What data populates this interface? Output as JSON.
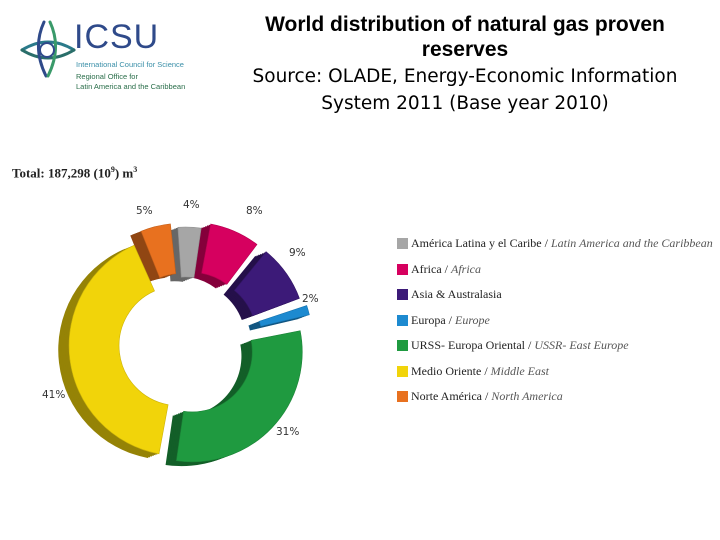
{
  "logo": {
    "wordmark": "ICSU",
    "subtitle": "International Council for Science",
    "office_line1": "Regional Office for",
    "office_line2": "Latin America and the Caribbean"
  },
  "header": {
    "title_line1": "World distribution of natural gas proven",
    "title_line2": "reserves",
    "source_line1": "Source: OLADE, Energy-Economic Information",
    "source_line2": "System 2011 (Base year 2010)"
  },
  "total": {
    "label": "Total: 187,298 (10",
    "exponent": "9",
    "unit": ") m",
    "unit_exponent": "3"
  },
  "legend": [
    {
      "es": "América Latina y el Caribe",
      "sep": " / ",
      "en": "Latin America and the Caribbean",
      "color": "#a6a6a6"
    },
    {
      "es": "Africa",
      "sep": " / ",
      "en": "Africa",
      "color": "#d6005f"
    },
    {
      "es": "Asia & Australasia",
      "sep": "",
      "en": "",
      "color": "#3c1a78"
    },
    {
      "es": "Europa",
      "sep": " / ",
      "en": "Europe",
      "color": "#1d8ad0"
    },
    {
      "es": "URSS- Europa Oriental",
      "sep": " / ",
      "en": "USSR- East Europe",
      "color": "#1f9a40"
    },
    {
      "es": "Medio Oriente",
      "sep": " / ",
      "en": "Middle East",
      "color": "#f1d40a"
    },
    {
      "es": "Norte América",
      "sep": " / ",
      "en": "North America",
      "color": "#e8711f"
    }
  ],
  "labels": {
    "north_america": "5%",
    "latin_america": "4%",
    "africa": "8%",
    "asia": "9%",
    "europe": "2%",
    "ussr": "31%",
    "middle_east": "41%"
  },
  "chart_data": {
    "type": "pie",
    "subtype": "3d-exploded-donut",
    "title": "World distribution of natural gas proven reserves",
    "subtitle": "Total: 187,298 (10^9) m3",
    "source": "OLADE, Energy-Economic Information System 2011 (Base year 2010)",
    "categories": [
      "América Latina y el Caribe / Latin America and the Caribbean",
      "Africa / Africa",
      "Asia & Australasia",
      "Europa / Europe",
      "URSS- Europa Oriental / USSR- East Europe",
      "Medio Oriente / Middle East",
      "Norte América / North America"
    ],
    "values": [
      4,
      8,
      9,
      2,
      31,
      41,
      5
    ],
    "unit": "%",
    "colors": [
      "#a6a6a6",
      "#d6005f",
      "#3c1a78",
      "#1d8ad0",
      "#1f9a40",
      "#f1d40a",
      "#e8711f"
    ],
    "legend_position": "right"
  }
}
